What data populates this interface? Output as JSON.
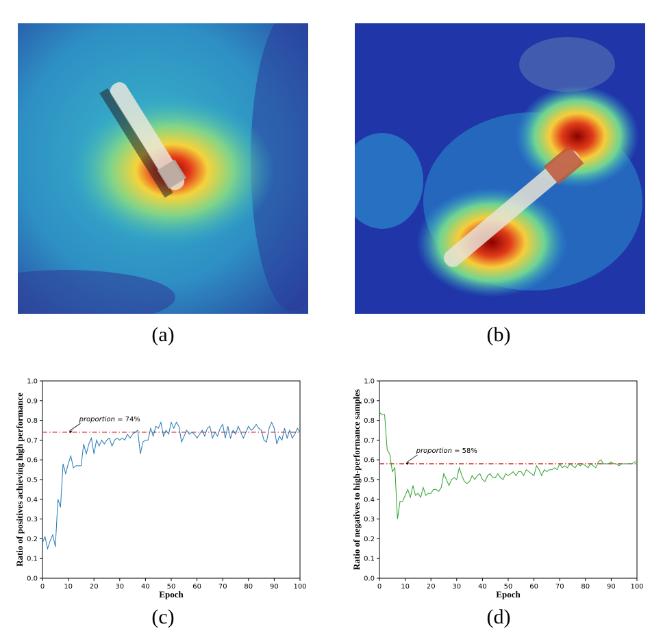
{
  "panels": {
    "a": {
      "caption": "(a)"
    },
    "b": {
      "caption": "(b)"
    },
    "c": {
      "caption": "(c)"
    },
    "d": {
      "caption": "(d)"
    }
  },
  "chart_data": [
    {
      "type": "line",
      "xlabel": "Epoch",
      "ylabel": "Ratio of positives achieving high performance",
      "xlim": [
        0,
        100
      ],
      "ylim": [
        0.0,
        1.0
      ],
      "xticks": [
        "0",
        "10",
        "20",
        "30",
        "40",
        "50",
        "60",
        "70",
        "80",
        "90",
        "100"
      ],
      "yticks": [
        "0.0",
        "0.1",
        "0.2",
        "0.3",
        "0.4",
        "0.5",
        "0.6",
        "0.7",
        "0.8",
        "0.9",
        "1.0"
      ],
      "series_color": "#1f77b4",
      "reference_line": {
        "value": 0.74,
        "color": "#d62728"
      },
      "annotation": {
        "label": "proportion",
        "value_text": " = 74%",
        "x": 10,
        "y": 0.74
      },
      "x": [
        0,
        1,
        2,
        3,
        4,
        5,
        6,
        7,
        8,
        9,
        10,
        11,
        12,
        13,
        14,
        15,
        16,
        17,
        18,
        19,
        20,
        21,
        22,
        23,
        24,
        25,
        26,
        27,
        28,
        29,
        30,
        31,
        32,
        33,
        34,
        35,
        36,
        37,
        38,
        39,
        40,
        41,
        42,
        43,
        44,
        45,
        46,
        47,
        48,
        49,
        50,
        51,
        52,
        53,
        54,
        55,
        56,
        57,
        58,
        59,
        60,
        61,
        62,
        63,
        64,
        65,
        66,
        67,
        68,
        69,
        70,
        71,
        72,
        73,
        74,
        75,
        76,
        77,
        78,
        79,
        80,
        81,
        82,
        83,
        84,
        85,
        86,
        87,
        88,
        89,
        90,
        91,
        92,
        93,
        94,
        95,
        96,
        97,
        98,
        99,
        100
      ],
      "values": [
        0.18,
        0.21,
        0.15,
        0.19,
        0.22,
        0.16,
        0.4,
        0.36,
        0.58,
        0.53,
        0.58,
        0.62,
        0.56,
        0.57,
        0.57,
        0.57,
        0.68,
        0.63,
        0.68,
        0.71,
        0.63,
        0.7,
        0.67,
        0.7,
        0.68,
        0.7,
        0.71,
        0.67,
        0.7,
        0.71,
        0.7,
        0.71,
        0.7,
        0.73,
        0.71,
        0.73,
        0.74,
        0.75,
        0.63,
        0.69,
        0.7,
        0.7,
        0.76,
        0.72,
        0.77,
        0.76,
        0.79,
        0.72,
        0.75,
        0.73,
        0.79,
        0.76,
        0.79,
        0.77,
        0.69,
        0.72,
        0.75,
        0.73,
        0.74,
        0.73,
        0.71,
        0.73,
        0.75,
        0.72,
        0.76,
        0.77,
        0.71,
        0.74,
        0.72,
        0.76,
        0.78,
        0.71,
        0.77,
        0.71,
        0.75,
        0.73,
        0.77,
        0.74,
        0.71,
        0.74,
        0.77,
        0.75,
        0.76,
        0.78,
        0.76,
        0.75,
        0.7,
        0.69,
        0.76,
        0.79,
        0.76,
        0.68,
        0.72,
        0.7,
        0.76,
        0.71,
        0.75,
        0.71,
        0.73,
        0.76,
        0.74
      ]
    },
    {
      "type": "line",
      "xlabel": "Epoch",
      "ylabel": "Ratio of negatives to high-performance samples",
      "xlim": [
        0,
        100
      ],
      "ylim": [
        0.0,
        1.0
      ],
      "xticks": [
        "0",
        "10",
        "20",
        "30",
        "40",
        "50",
        "60",
        "70",
        "80",
        "90",
        "100"
      ],
      "yticks": [
        "0.0",
        "0.1",
        "0.2",
        "0.3",
        "0.4",
        "0.5",
        "0.6",
        "0.7",
        "0.8",
        "0.9",
        "1.0"
      ],
      "series_color": "#2ca02c",
      "reference_line": {
        "value": 0.58,
        "color": "#d62728"
      },
      "annotation": {
        "label": "proportion",
        "value_text": " = 58%",
        "x": 10,
        "y": 0.58
      },
      "x": [
        0,
        1,
        2,
        3,
        4,
        5,
        6,
        7,
        8,
        9,
        10,
        11,
        12,
        13,
        14,
        15,
        16,
        17,
        18,
        19,
        20,
        21,
        22,
        23,
        24,
        25,
        26,
        27,
        28,
        29,
        30,
        31,
        32,
        33,
        34,
        35,
        36,
        37,
        38,
        39,
        40,
        41,
        42,
        43,
        44,
        45,
        46,
        47,
        48,
        49,
        50,
        51,
        52,
        53,
        54,
        55,
        56,
        57,
        58,
        59,
        60,
        61,
        62,
        63,
        64,
        65,
        66,
        67,
        68,
        69,
        70,
        71,
        72,
        73,
        74,
        75,
        76,
        77,
        78,
        79,
        80,
        81,
        82,
        83,
        84,
        85,
        86,
        87,
        88,
        89,
        90,
        91,
        92,
        93,
        94,
        95,
        96,
        97,
        98,
        99,
        100
      ],
      "values": [
        0.84,
        0.83,
        0.83,
        0.65,
        0.63,
        0.54,
        0.56,
        0.3,
        0.39,
        0.39,
        0.42,
        0.45,
        0.41,
        0.47,
        0.42,
        0.43,
        0.41,
        0.46,
        0.42,
        0.43,
        0.43,
        0.45,
        0.45,
        0.44,
        0.46,
        0.53,
        0.5,
        0.47,
        0.5,
        0.51,
        0.5,
        0.56,
        0.52,
        0.49,
        0.48,
        0.49,
        0.52,
        0.5,
        0.52,
        0.53,
        0.5,
        0.49,
        0.52,
        0.53,
        0.51,
        0.51,
        0.53,
        0.51,
        0.5,
        0.53,
        0.52,
        0.53,
        0.54,
        0.52,
        0.54,
        0.54,
        0.52,
        0.55,
        0.54,
        0.53,
        0.52,
        0.57,
        0.55,
        0.52,
        0.55,
        0.54,
        0.55,
        0.55,
        0.56,
        0.55,
        0.58,
        0.56,
        0.57,
        0.56,
        0.58,
        0.57,
        0.56,
        0.58,
        0.57,
        0.58,
        0.57,
        0.56,
        0.58,
        0.57,
        0.56,
        0.59,
        0.6,
        0.58,
        0.58,
        0.58,
        0.59,
        0.58,
        0.58,
        0.57,
        0.58,
        0.58,
        0.58,
        0.58,
        0.58,
        0.59,
        0.59
      ]
    }
  ]
}
